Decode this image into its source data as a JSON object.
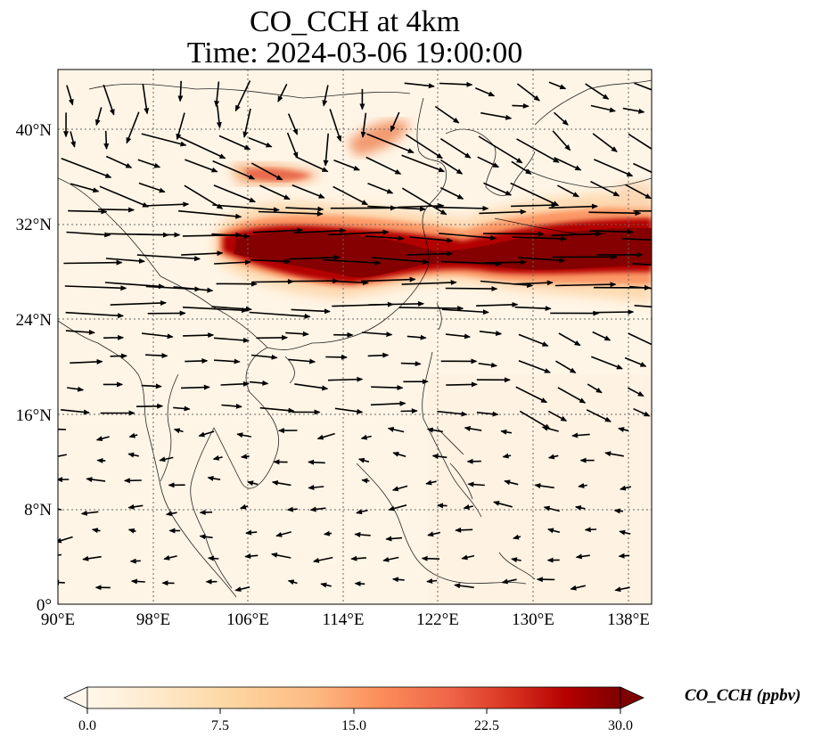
{
  "title": {
    "line1": "CO_CCH at 4km",
    "line2": "Time: 2024-03-06 19:00:00"
  },
  "map": {
    "lon_range": [
      90,
      140
    ],
    "lat_range": [
      0,
      45
    ],
    "lat_ticks": [
      {
        "value": 0,
        "label": "0°"
      },
      {
        "value": 8,
        "label": "8°N"
      },
      {
        "value": 16,
        "label": "16°N"
      },
      {
        "value": 24,
        "label": "24°N"
      },
      {
        "value": 32,
        "label": "32°N"
      },
      {
        "value": 40,
        "label": "40°N"
      }
    ],
    "lon_ticks": [
      {
        "value": 90,
        "label": "90°E"
      },
      {
        "value": 98,
        "label": "98°E"
      },
      {
        "value": 106,
        "label": "106°E"
      },
      {
        "value": 114,
        "label": "114°E"
      },
      {
        "value": 122,
        "label": "122°E"
      },
      {
        "value": 130,
        "label": "130°E"
      },
      {
        "value": 138,
        "label": "138°E"
      }
    ],
    "gridlines": true,
    "plume_color_max": "#7f0000",
    "plume_color_mid": "#d7301f",
    "background_color": "#fff5e6"
  },
  "colorbar": {
    "label": "CO_CCH (ppbv)",
    "ticks": [
      "0.0",
      "7.5",
      "15.0",
      "22.5",
      "30.0"
    ],
    "range": [
      0,
      30
    ],
    "colors": [
      "#fff7ec",
      "#fee8c8",
      "#fdd49e",
      "#fdbb84",
      "#fc8d59",
      "#ef6548",
      "#d7301f",
      "#b30000",
      "#7f0000"
    ],
    "extend": "both"
  }
}
